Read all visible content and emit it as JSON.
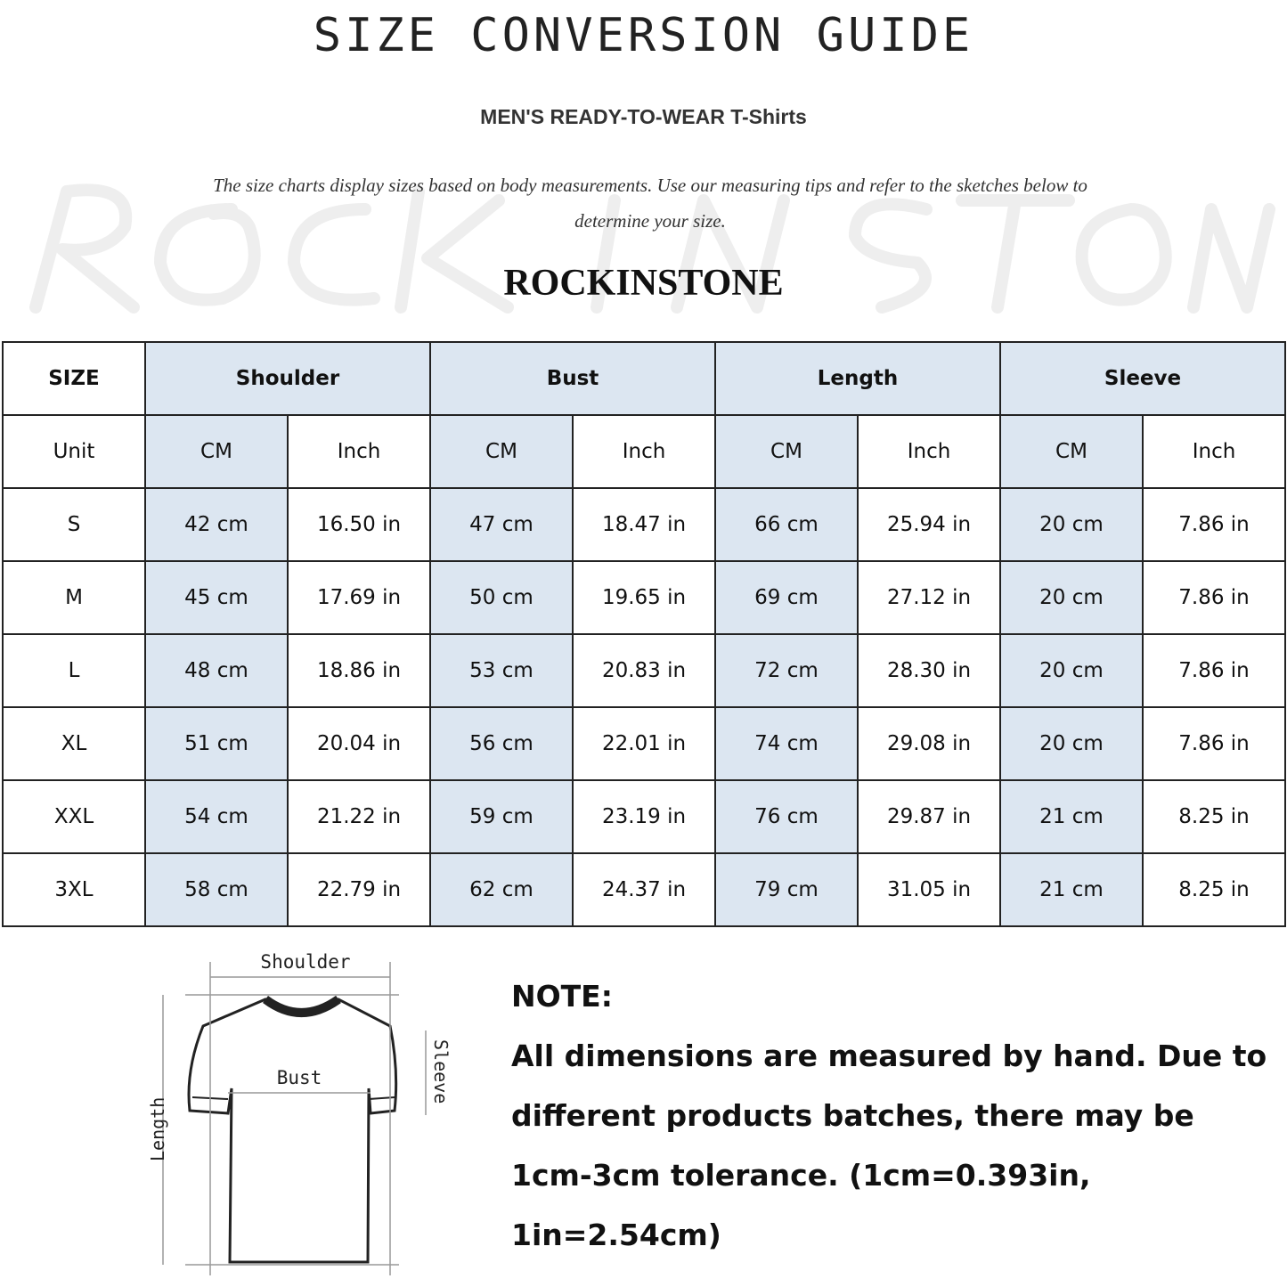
{
  "title": "SIZE CONVERSION GUIDE",
  "subtitle": "MEN'S READY-TO-WEAR T-Shirts",
  "description": "The size charts display sizes based on body measurements. Use our measuring tips and refer to the sketches below to determine your size.",
  "watermark": "ROCK IN STONE",
  "brand": "ROCKINSTONE",
  "table": {
    "header": [
      "SIZE",
      "Shoulder",
      "Bust",
      "Length",
      "Sleeve"
    ],
    "units": [
      "Unit",
      "CM",
      "Inch",
      "CM",
      "Inch",
      "CM",
      "Inch",
      "CM",
      "Inch"
    ],
    "rows": [
      [
        "S",
        "42 cm",
        "16.50 in",
        "47 cm",
        "18.47  in",
        "66 cm",
        "25.94  in",
        "20 cm",
        "7.86  in"
      ],
      [
        "M",
        "45 cm",
        "17.69  in",
        "50 cm",
        "19.65  in",
        "69 cm",
        "27.12  in",
        "20 cm",
        "7.86  in"
      ],
      [
        "L",
        "48 cm",
        "18.86  in",
        "53 cm",
        "20.83  in",
        "72 cm",
        "28.30  in",
        "20 cm",
        "7.86  in"
      ],
      [
        "XL",
        "51 cm",
        "20.04  in",
        "56 cm",
        "22.01  in",
        "74 cm",
        "29.08  in",
        "20 cm",
        "7.86  in"
      ],
      [
        "XXL",
        "54 cm",
        "21.22  in",
        "59 cm",
        "23.19  in",
        "76 cm",
        "29.87  in",
        "21 cm",
        "8.25  in"
      ],
      [
        "3XL",
        "58 cm",
        "22.79  in",
        "62 cm",
        "24.37  in",
        "79 cm",
        "31.05  in",
        "21 cm",
        "8.25  in"
      ]
    ]
  },
  "sketch": {
    "shoulder": "Shoulder",
    "bust": "Bust",
    "sleeve": "Sleeve",
    "length": "Length"
  },
  "note": {
    "heading": "NOTE:",
    "body": "All dimensions are measured by hand. Due to different products batches, there may be 1cm-3cm tolerance. (1cm=0.393in, 1in=2.54cm)"
  },
  "colors": {
    "header_fill": "#dce6f1",
    "border": "#222222"
  }
}
